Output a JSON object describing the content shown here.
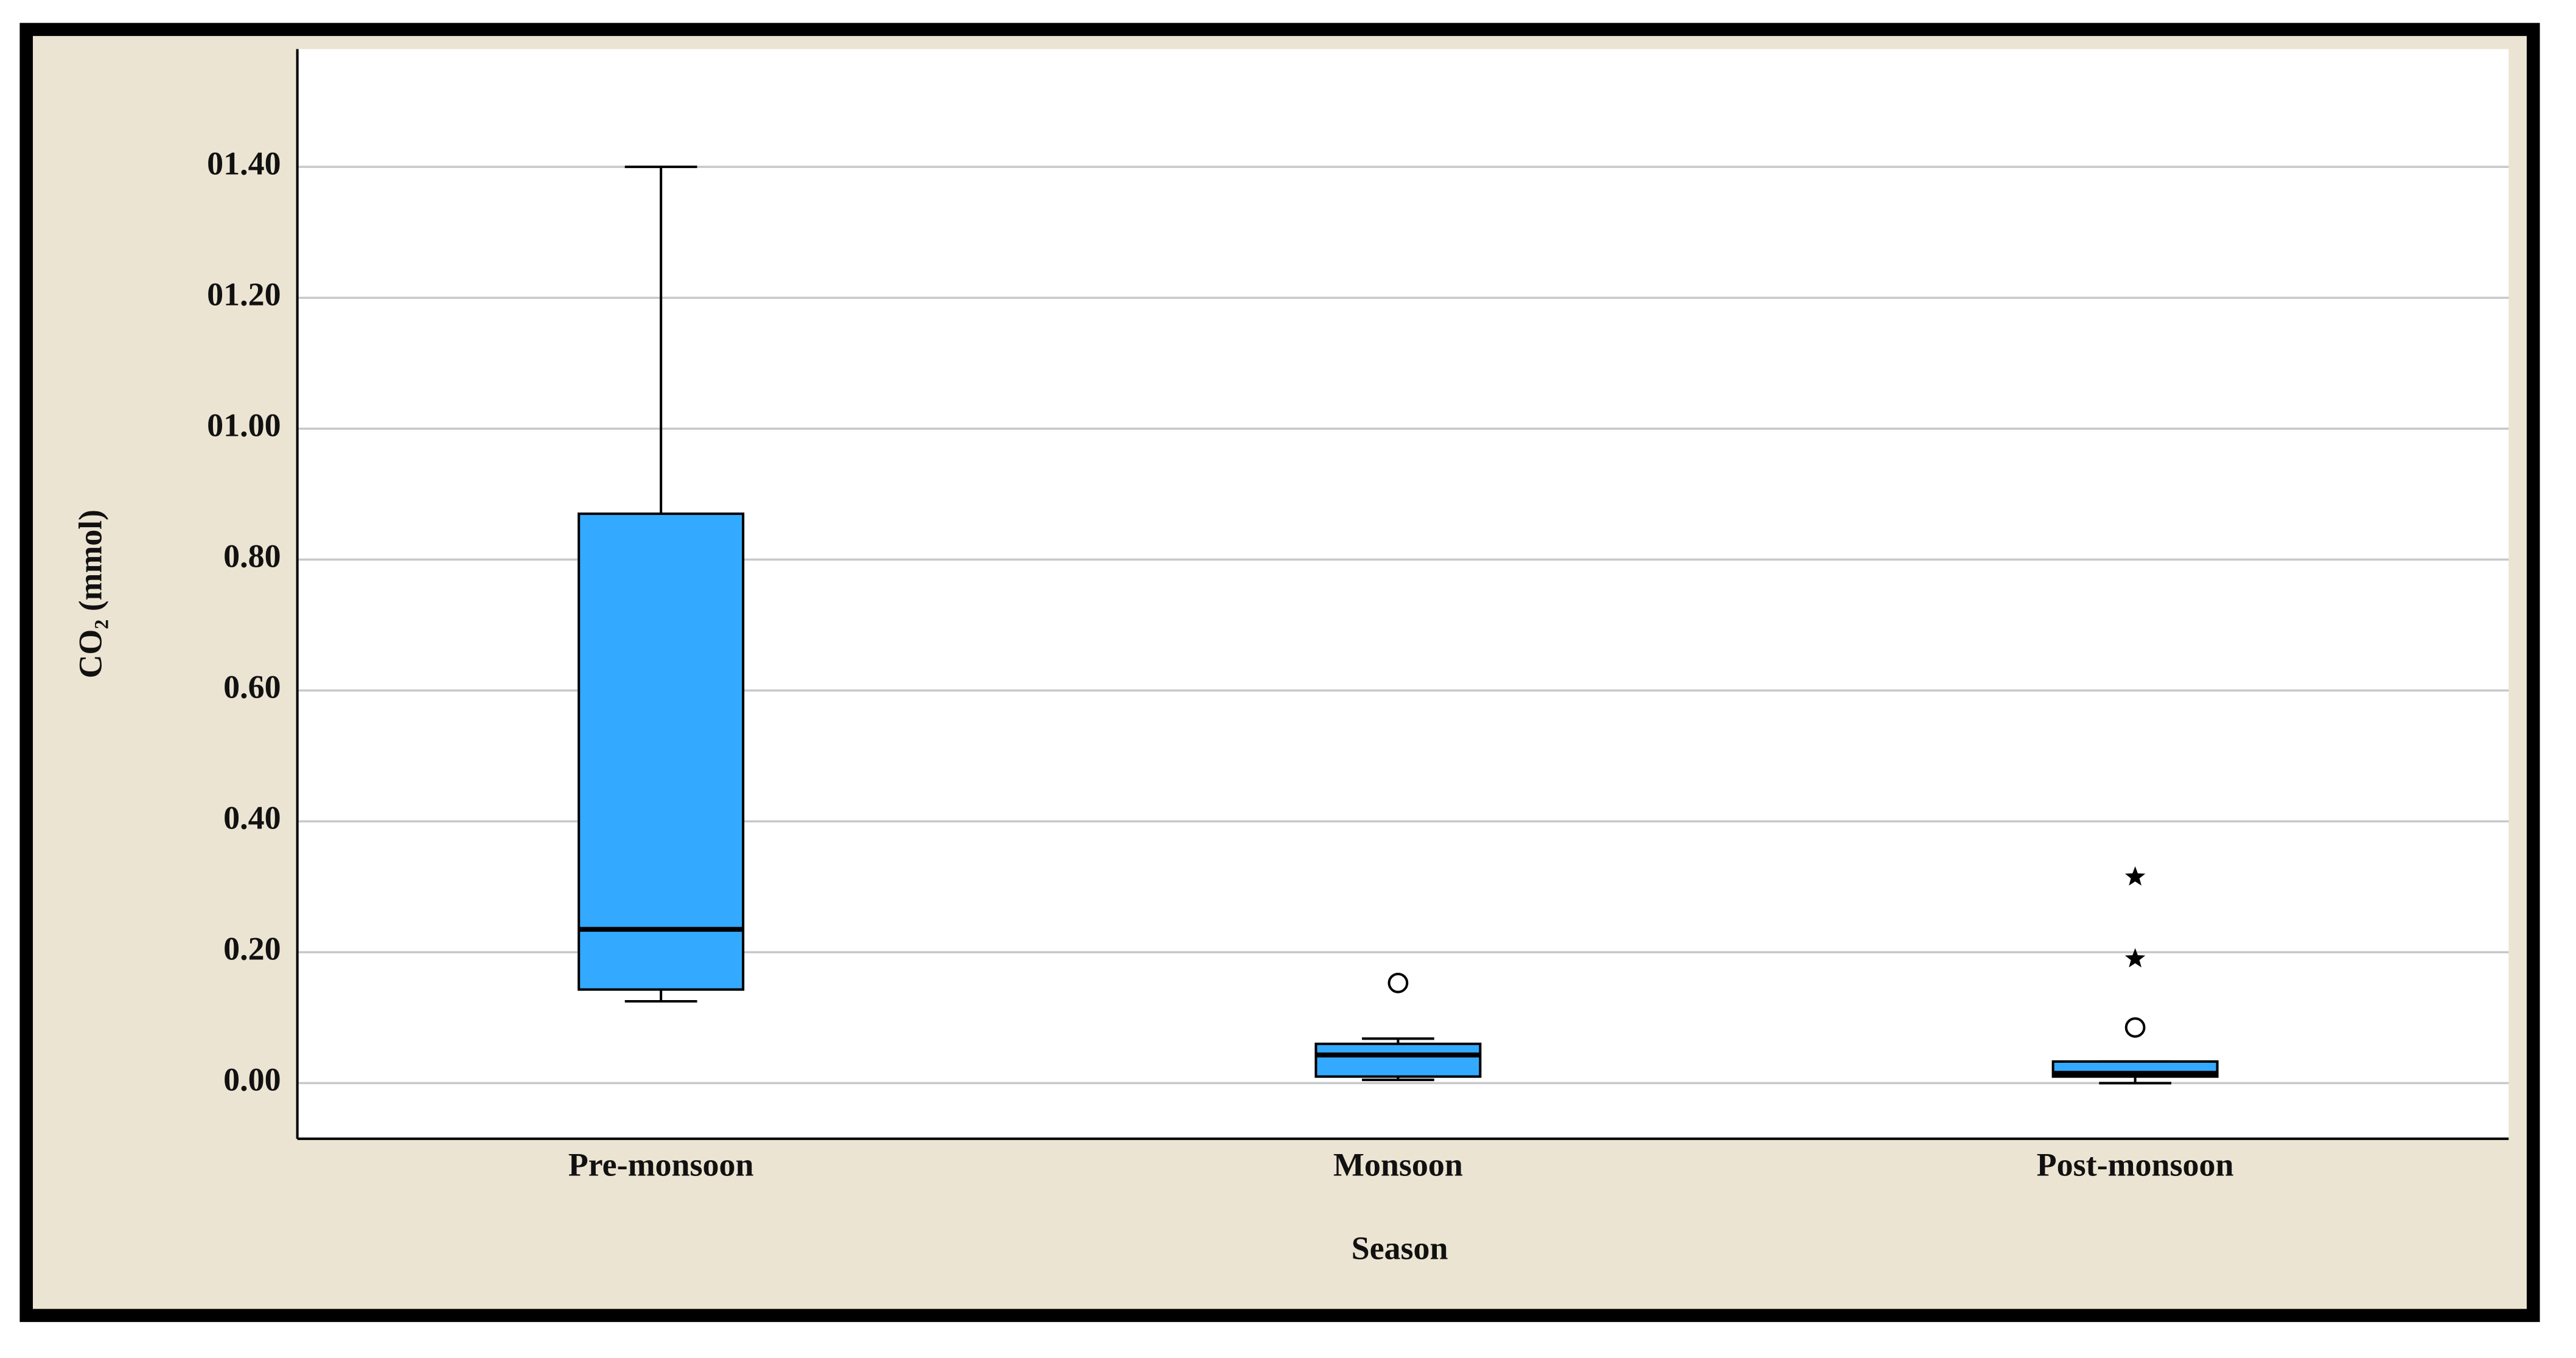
{
  "chart_data": {
    "type": "box",
    "x_label": "Season",
    "y_label": "CO₂ (mmol)",
    "categories": [
      "Pre-monsoon",
      "Monsoon",
      "Post-monsoon"
    ],
    "color": "#33aaff",
    "boxes": [
      {
        "min": 0.125,
        "q1": 0.143,
        "median": 0.235,
        "q3": 0.87,
        "max": 1.4,
        "outliers": [],
        "extremes": []
      },
      {
        "min": 0.005,
        "q1": 0.01,
        "median": 0.043,
        "q3": 0.06,
        "max": 0.068,
        "outliers": [
          0.153
        ],
        "extremes": []
      },
      {
        "min": 0.0,
        "q1": 0.01,
        "median": 0.015,
        "q3": 0.033,
        "max": 0.033,
        "outliers": [
          0.085
        ],
        "extremes": [
          0.19,
          0.315
        ]
      }
    ],
    "ylim": [
      -0.085,
      1.58
    ],
    "yticks": [
      {
        "value": 0,
        "label": "0.00"
      },
      {
        "value": 0.2,
        "label": "0.20"
      },
      {
        "value": 0.4,
        "label": "0.40"
      },
      {
        "value": 0.6,
        "label": "0.60"
      },
      {
        "value": 0.8,
        "label": "0.80"
      },
      {
        "value": 1.0,
        "label": "01.00"
      },
      {
        "value": 1.2,
        "label": "01.20"
      },
      {
        "value": 1.4,
        "label": "01.40"
      }
    ],
    "grid": true
  }
}
